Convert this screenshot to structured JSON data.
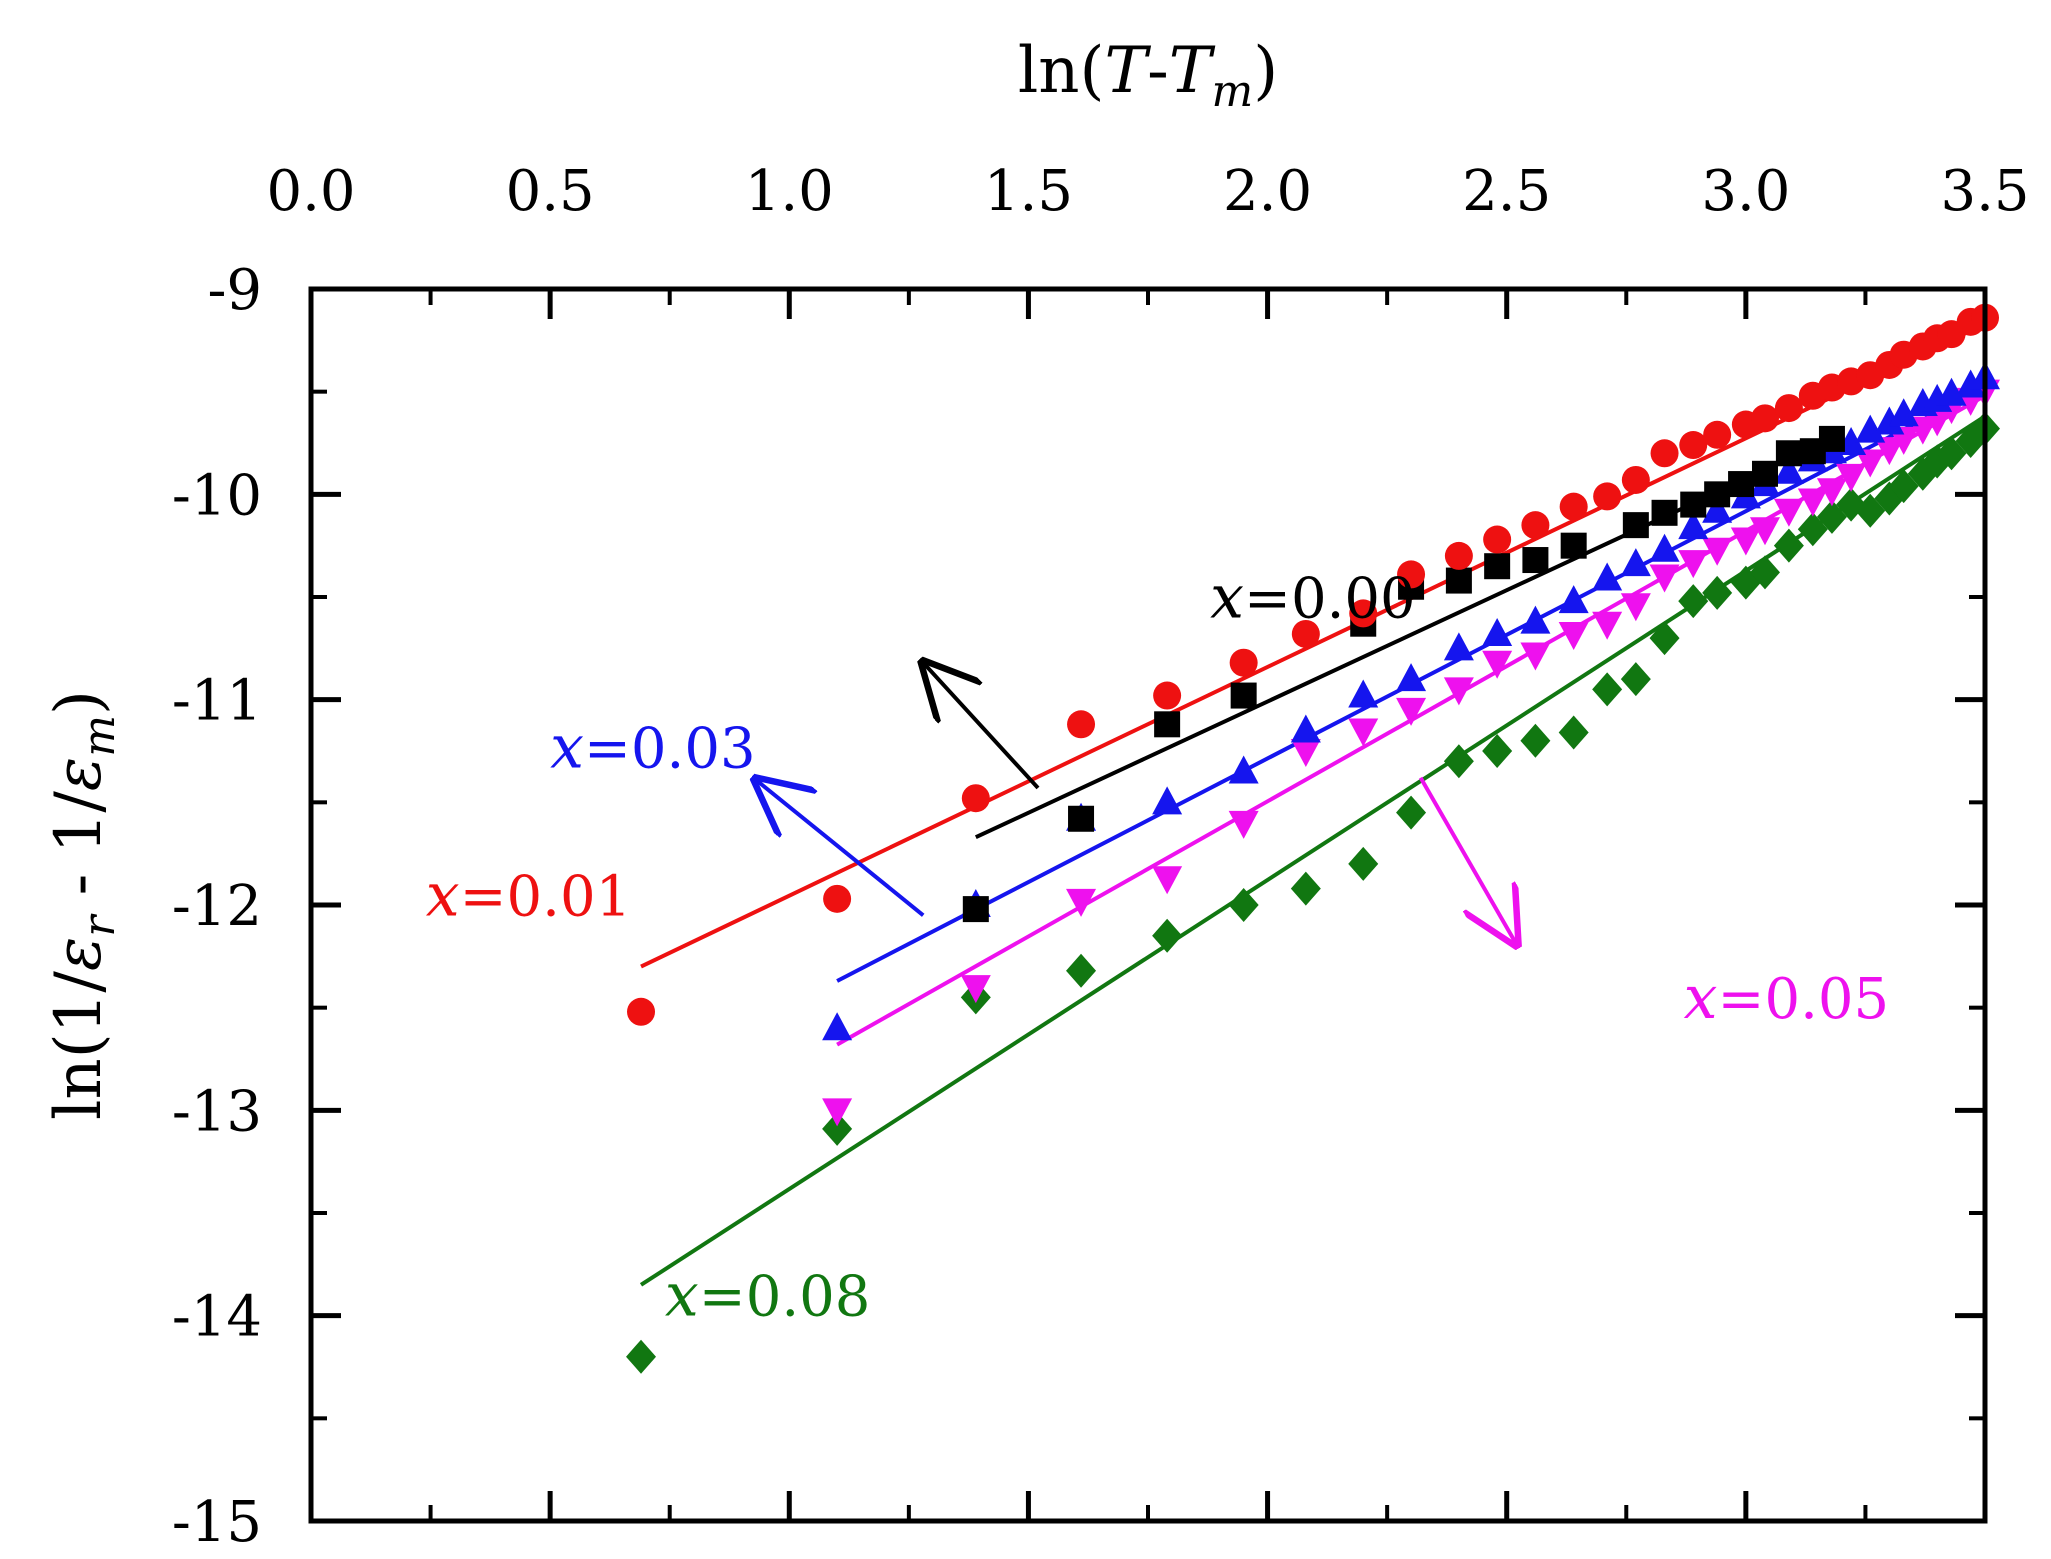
{
  "chart_data": {
    "type": "scatter",
    "xlabel": {
      "prefix": "ln(",
      "T": "T",
      "dash": "-",
      "T2": "T",
      "sub": "m",
      "suffix": ")"
    },
    "ylabel": {
      "prefix": "ln(1/",
      "eps1": "ε",
      "sub1": "r",
      "middle": " - 1/",
      "eps2": "ε",
      "sub2": "m",
      "suffix": ")"
    },
    "xlim": [
      0.0,
      3.5
    ],
    "ylim": [
      -15,
      -9
    ],
    "x_ticks": [
      "0.0",
      "0.5",
      "1.0",
      "1.5",
      "2.0",
      "2.5",
      "3.0",
      "3.5"
    ],
    "y_ticks": [
      "-9",
      "-10",
      "-11",
      "-12",
      "-13",
      "-14",
      "-15"
    ],
    "x_axis_position": "top",
    "grid": false,
    "series": [
      {
        "name": "x=0.00",
        "label_symbol": "x",
        "label_value": "=0.00",
        "color": "#000000",
        "marker": "square",
        "points": [
          [
            1.39,
            -12.02
          ],
          [
            1.61,
            -11.58
          ],
          [
            1.79,
            -11.12
          ],
          [
            1.95,
            -10.98
          ],
          [
            2.2,
            -10.63
          ],
          [
            2.3,
            -10.45
          ],
          [
            2.4,
            -10.42
          ],
          [
            2.48,
            -10.35
          ],
          [
            2.56,
            -10.32
          ],
          [
            2.64,
            -10.25
          ],
          [
            2.77,
            -10.15
          ],
          [
            2.83,
            -10.09
          ],
          [
            2.89,
            -10.05
          ],
          [
            2.94,
            -10.0
          ],
          [
            2.99,
            -9.95
          ],
          [
            3.04,
            -9.9
          ],
          [
            3.09,
            -9.8
          ],
          [
            3.14,
            -9.79
          ],
          [
            3.18,
            -9.73
          ]
        ],
        "fit": [
          [
            1.39,
            -11.67
          ],
          [
            3.18,
            -9.73
          ]
        ],
        "label_anchor": [
          1.88,
          -10.6
        ],
        "arrow": [
          [
            1.52,
            -11.43
          ],
          [
            1.28,
            -10.82
          ]
        ]
      },
      {
        "name": "x=0.01",
        "label_symbol": "x",
        "label_value": "=0.01",
        "color": "#ee1111",
        "marker": "circle",
        "points": [
          [
            0.69,
            -12.52
          ],
          [
            1.1,
            -11.97
          ],
          [
            1.39,
            -11.48
          ],
          [
            1.61,
            -11.12
          ],
          [
            1.79,
            -10.98
          ],
          [
            1.95,
            -10.82
          ],
          [
            2.08,
            -10.68
          ],
          [
            2.2,
            -10.58
          ],
          [
            2.3,
            -10.39
          ],
          [
            2.4,
            -10.3
          ],
          [
            2.48,
            -10.22
          ],
          [
            2.56,
            -10.15
          ],
          [
            2.64,
            -10.06
          ],
          [
            2.71,
            -10.01
          ],
          [
            2.77,
            -9.93
          ],
          [
            2.83,
            -9.8
          ],
          [
            2.89,
            -9.76
          ],
          [
            2.94,
            -9.71
          ],
          [
            3.0,
            -9.66
          ],
          [
            3.04,
            -9.63
          ],
          [
            3.09,
            -9.58
          ],
          [
            3.14,
            -9.52
          ],
          [
            3.18,
            -9.48
          ],
          [
            3.22,
            -9.45
          ],
          [
            3.26,
            -9.42
          ],
          [
            3.3,
            -9.37
          ],
          [
            3.33,
            -9.32
          ],
          [
            3.37,
            -9.28
          ],
          [
            3.4,
            -9.24
          ],
          [
            3.43,
            -9.22
          ],
          [
            3.47,
            -9.16
          ],
          [
            3.5,
            -9.14
          ]
        ],
        "fit": [
          [
            0.69,
            -12.3
          ],
          [
            3.5,
            -9.17
          ]
        ],
        "label_anchor": [
          0.24,
          -12.05
        ]
      },
      {
        "name": "x=0.03",
        "label_symbol": "x",
        "label_value": "=0.03",
        "color": "#1515ee",
        "marker": "triangle-up",
        "points": [
          [
            1.1,
            -12.6
          ],
          [
            1.39,
            -12.0
          ],
          [
            1.61,
            -11.58
          ],
          [
            1.79,
            -11.5
          ],
          [
            1.95,
            -11.35
          ],
          [
            2.08,
            -11.15
          ],
          [
            2.2,
            -10.98
          ],
          [
            2.3,
            -10.9
          ],
          [
            2.4,
            -10.75
          ],
          [
            2.48,
            -10.68
          ],
          [
            2.56,
            -10.62
          ],
          [
            2.64,
            -10.52
          ],
          [
            2.71,
            -10.41
          ],
          [
            2.77,
            -10.34
          ],
          [
            2.83,
            -10.27
          ],
          [
            2.89,
            -10.16
          ],
          [
            2.94,
            -10.08
          ],
          [
            3.0,
            -10.01
          ],
          [
            3.04,
            -9.95
          ],
          [
            3.09,
            -9.89
          ],
          [
            3.14,
            -9.83
          ],
          [
            3.18,
            -9.79
          ],
          [
            3.22,
            -9.75
          ],
          [
            3.26,
            -9.69
          ],
          [
            3.3,
            -9.65
          ],
          [
            3.33,
            -9.61
          ],
          [
            3.37,
            -9.56
          ],
          [
            3.4,
            -9.54
          ],
          [
            3.43,
            -9.51
          ],
          [
            3.47,
            -9.47
          ],
          [
            3.5,
            -9.43
          ]
        ],
        "fit": [
          [
            1.1,
            -12.37
          ],
          [
            3.5,
            -9.48
          ]
        ],
        "label_anchor": [
          0.5,
          -11.33
        ],
        "arrow": [
          [
            1.28,
            -12.05
          ],
          [
            0.93,
            -11.39
          ]
        ]
      },
      {
        "name": "x=0.05",
        "label_symbol": "x",
        "label_value": "=0.05",
        "color": "#ee11ee",
        "marker": "triangle-down",
        "points": [
          [
            1.1,
            -13.0
          ],
          [
            1.39,
            -12.4
          ],
          [
            1.61,
            -11.98
          ],
          [
            1.79,
            -11.87
          ],
          [
            1.95,
            -11.6
          ],
          [
            2.08,
            -11.25
          ],
          [
            2.2,
            -11.15
          ],
          [
            2.3,
            -11.05
          ],
          [
            2.4,
            -10.95
          ],
          [
            2.48,
            -10.82
          ],
          [
            2.56,
            -10.78
          ],
          [
            2.64,
            -10.68
          ],
          [
            2.71,
            -10.63
          ],
          [
            2.77,
            -10.54
          ],
          [
            2.83,
            -10.4
          ],
          [
            2.89,
            -10.33
          ],
          [
            2.94,
            -10.27
          ],
          [
            3.0,
            -10.22
          ],
          [
            3.04,
            -10.17
          ],
          [
            3.09,
            -10.08
          ],
          [
            3.14,
            -10.03
          ],
          [
            3.18,
            -9.98
          ],
          [
            3.22,
            -9.91
          ],
          [
            3.26,
            -9.84
          ],
          [
            3.3,
            -9.78
          ],
          [
            3.33,
            -9.73
          ],
          [
            3.37,
            -9.68
          ],
          [
            3.4,
            -9.64
          ],
          [
            3.43,
            -9.58
          ],
          [
            3.47,
            -9.54
          ],
          [
            3.5,
            -9.5
          ]
        ],
        "fit": [
          [
            1.1,
            -12.68
          ],
          [
            3.5,
            -9.52
          ]
        ],
        "label_anchor": [
          2.87,
          -12.55
        ],
        "arrow": [
          [
            2.32,
            -11.38
          ],
          [
            2.52,
            -12.19
          ]
        ]
      },
      {
        "name": "x=0.08",
        "label_symbol": "x",
        "label_value": "=0.08",
        "color": "#117711",
        "marker": "diamond",
        "points": [
          [
            0.69,
            -14.2
          ],
          [
            1.1,
            -13.09
          ],
          [
            1.39,
            -12.45
          ],
          [
            1.61,
            -12.32
          ],
          [
            1.79,
            -12.15
          ],
          [
            1.95,
            -12.0
          ],
          [
            2.08,
            -11.92
          ],
          [
            2.2,
            -11.8
          ],
          [
            2.3,
            -11.55
          ],
          [
            2.4,
            -11.3
          ],
          [
            2.48,
            -11.25
          ],
          [
            2.56,
            -11.2
          ],
          [
            2.64,
            -11.16
          ],
          [
            2.71,
            -10.95
          ],
          [
            2.77,
            -10.9
          ],
          [
            2.83,
            -10.7
          ],
          [
            2.89,
            -10.52
          ],
          [
            2.94,
            -10.48
          ],
          [
            3.0,
            -10.43
          ],
          [
            3.04,
            -10.38
          ],
          [
            3.09,
            -10.25
          ],
          [
            3.14,
            -10.17
          ],
          [
            3.18,
            -10.11
          ],
          [
            3.22,
            -10.05
          ],
          [
            3.26,
            -10.08
          ],
          [
            3.3,
            -10.02
          ],
          [
            3.33,
            -9.96
          ],
          [
            3.37,
            -9.9
          ],
          [
            3.4,
            -9.84
          ],
          [
            3.43,
            -9.8
          ],
          [
            3.47,
            -9.74
          ],
          [
            3.5,
            -9.68
          ]
        ],
        "fit": [
          [
            0.69,
            -13.85
          ],
          [
            3.5,
            -9.62
          ]
        ],
        "label_anchor": [
          0.74,
          -14.0
        ]
      }
    ]
  }
}
